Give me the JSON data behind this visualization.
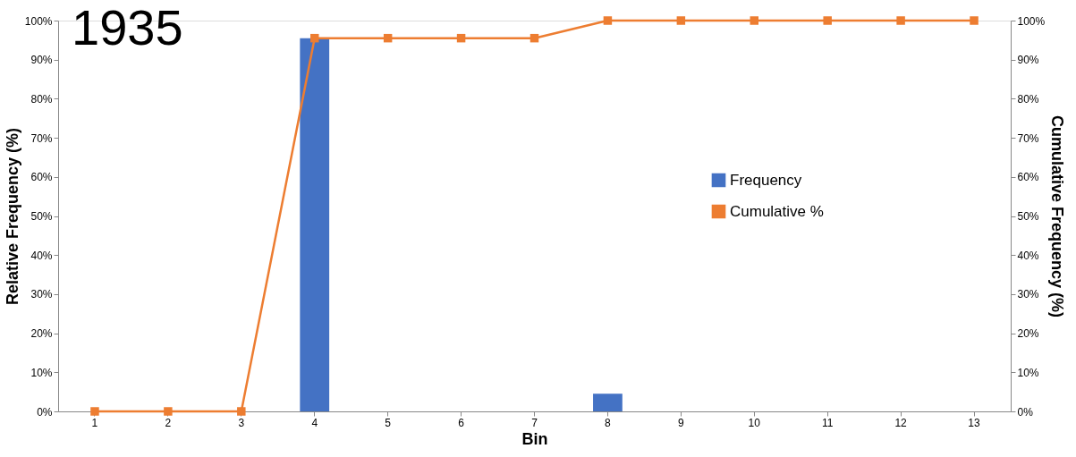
{
  "chart_data": {
    "type": "bar",
    "title": "1935",
    "xlabel": "Bin",
    "ylabel": "Relative Frequency (%)",
    "y2label": "Cumulative Frequency (%)",
    "categories": [
      "1",
      "2",
      "3",
      "4",
      "5",
      "6",
      "7",
      "8",
      "9",
      "10",
      "11",
      "12",
      "13"
    ],
    "series": [
      {
        "name": "Frequency",
        "color": "#4472c4",
        "values": [
          0,
          0,
          0,
          95.5,
          0,
          0,
          0,
          4.5,
          0,
          0,
          0,
          0,
          0
        ]
      },
      {
        "name": "Cumulative %",
        "type": "line",
        "axis": "y2",
        "color": "#ed7d31",
        "marker": "square",
        "values": [
          0,
          0,
          0,
          95.5,
          95.5,
          95.5,
          95.5,
          100,
          100,
          100,
          100,
          100,
          100
        ]
      }
    ],
    "ylim": [
      0,
      100
    ],
    "yticks": [
      {
        "value": 0,
        "label": "0%"
      },
      {
        "value": 10,
        "label": "10%"
      },
      {
        "value": 20,
        "label": "20%"
      },
      {
        "value": 30,
        "label": "30%"
      },
      {
        "value": 40,
        "label": "40%"
      },
      {
        "value": 50,
        "label": "50%"
      },
      {
        "value": 60,
        "label": "60%"
      },
      {
        "value": 70,
        "label": "70%"
      },
      {
        "value": 80,
        "label": "80%"
      },
      {
        "value": 90,
        "label": "90%"
      },
      {
        "value": 100,
        "label": "100%"
      }
    ],
    "y2lim": [
      0,
      100
    ],
    "y2ticks": [
      {
        "value": 0,
        "label": "0%"
      },
      {
        "value": 10,
        "label": "10%"
      },
      {
        "value": 20,
        "label": "20%"
      },
      {
        "value": 30,
        "label": "30%"
      },
      {
        "value": 40,
        "label": "40%"
      },
      {
        "value": 50,
        "label": "50%"
      },
      {
        "value": 60,
        "label": "60%"
      },
      {
        "value": 70,
        "label": "70%"
      },
      {
        "value": 80,
        "label": "80%"
      },
      {
        "value": 90,
        "label": "90%"
      },
      {
        "value": 100,
        "label": "100%"
      }
    ],
    "grid": false,
    "legend": "right"
  }
}
